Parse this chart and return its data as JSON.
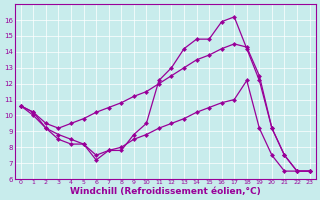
{
  "background_color": "#c8ecec",
  "grid_color": "#ffffff",
  "line_color": "#990099",
  "xlabel": "Windchill (Refroidissement éolien,°C)",
  "xlabel_fontsize": 6.5,
  "xlim": [
    -0.5,
    23.5
  ],
  "ylim": [
    6,
    17
  ],
  "yticks": [
    6,
    7,
    8,
    9,
    10,
    11,
    12,
    13,
    14,
    15,
    16
  ],
  "xticks": [
    0,
    1,
    2,
    3,
    4,
    5,
    6,
    7,
    8,
    9,
    10,
    11,
    12,
    13,
    14,
    15,
    16,
    17,
    18,
    19,
    20,
    21,
    22,
    23
  ],
  "line1_x": [
    0,
    1,
    2,
    3,
    4,
    5,
    6,
    7,
    8,
    9,
    10,
    11,
    12,
    13,
    14,
    15,
    16,
    17,
    18,
    19,
    20,
    21,
    22,
    23
  ],
  "line1_y": [
    10.6,
    10.2,
    9.2,
    8.5,
    8.2,
    8.2,
    7.2,
    7.8,
    7.8,
    8.8,
    9.5,
    12.2,
    13.0,
    14.2,
    14.8,
    14.8,
    15.9,
    16.2,
    14.2,
    12.2,
    9.2,
    7.5,
    6.5,
    6.5
  ],
  "line2_x": [
    0,
    1,
    2,
    3,
    4,
    5,
    6,
    7,
    8,
    9,
    10,
    11,
    12,
    13,
    14,
    15,
    16,
    17,
    18,
    19,
    20,
    21,
    22,
    23
  ],
  "line2_y": [
    10.6,
    10.2,
    9.5,
    9.2,
    9.5,
    9.8,
    10.2,
    10.5,
    10.8,
    11.2,
    11.5,
    12.0,
    12.5,
    13.0,
    13.5,
    13.8,
    14.2,
    14.5,
    14.3,
    12.5,
    9.2,
    7.5,
    6.5,
    6.5
  ],
  "line3_x": [
    0,
    1,
    2,
    3,
    4,
    5,
    6,
    7,
    8,
    9,
    10,
    11,
    12,
    13,
    14,
    15,
    16,
    17,
    18,
    19,
    20,
    21,
    22,
    23
  ],
  "line3_y": [
    10.6,
    10.0,
    9.2,
    8.8,
    8.5,
    8.2,
    7.5,
    7.8,
    8.0,
    8.5,
    8.8,
    9.2,
    9.5,
    9.8,
    10.2,
    10.5,
    10.8,
    11.0,
    12.2,
    9.2,
    7.5,
    6.5,
    6.5,
    6.5
  ]
}
